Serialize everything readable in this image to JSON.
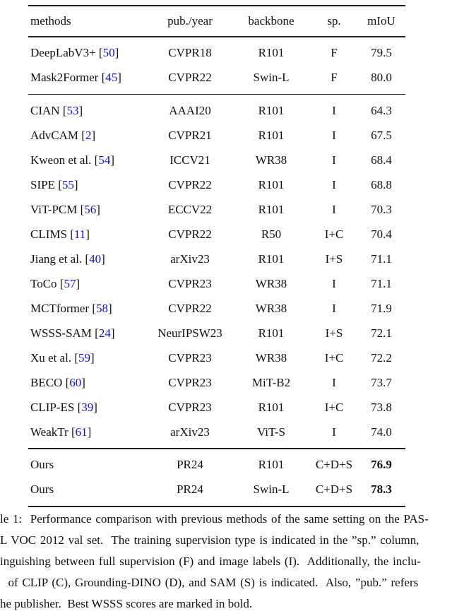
{
  "table": {
    "columns": [
      "methods",
      "pub./year",
      "backbone",
      "sp.",
      "mIoU"
    ],
    "groups": [
      {
        "rows": [
          {
            "method": "DeepLabV3+",
            "cite": "50",
            "pub": "CVPR18",
            "backbone": "R101",
            "sp": "F",
            "miou": "79.5",
            "bold": false
          },
          {
            "method": "Mask2Former",
            "cite": "45",
            "pub": "CVPR22",
            "backbone": "Swin-L",
            "sp": "F",
            "miou": "80.0",
            "bold": false
          }
        ]
      },
      {
        "rows": [
          {
            "method": "CIAN",
            "cite": "53",
            "pub": "AAAI20",
            "backbone": "R101",
            "sp": "I",
            "miou": "64.3",
            "bold": false
          },
          {
            "method": "AdvCAM",
            "cite": "2",
            "pub": "CVPR21",
            "backbone": "R101",
            "sp": "I",
            "miou": "67.5",
            "bold": false
          },
          {
            "method": "Kweon et al.",
            "cite": "54",
            "pub": "ICCV21",
            "backbone": "WR38",
            "sp": "I",
            "miou": "68.4",
            "bold": false
          },
          {
            "method": "SIPE",
            "cite": "55",
            "pub": "CVPR22",
            "backbone": "R101",
            "sp": "I",
            "miou": "68.8",
            "bold": false
          },
          {
            "method": "ViT-PCM",
            "cite": "56",
            "pub": "ECCV22",
            "backbone": "R101",
            "sp": "I",
            "miou": "70.3",
            "bold": false
          },
          {
            "method": "CLIMS",
            "cite": "11",
            "pub": "CVPR22",
            "backbone": "R50",
            "sp": "I+C",
            "miou": "70.4",
            "bold": false
          },
          {
            "method": "Jiang et al.",
            "cite": "40",
            "pub": "arXiv23",
            "backbone": "R101",
            "sp": "I+S",
            "miou": "71.1",
            "bold": false
          },
          {
            "method": "ToCo",
            "cite": "57",
            "pub": "CVPR23",
            "backbone": "WR38",
            "sp": "I",
            "miou": "71.1",
            "bold": false
          },
          {
            "method": "MCTformer",
            "cite": "58",
            "pub": "CVPR22",
            "backbone": "WR38",
            "sp": "I",
            "miou": "71.9",
            "bold": false
          },
          {
            "method": "WSSS-SAM",
            "cite": "24",
            "pub": "NeurIPSW23",
            "backbone": "R101",
            "sp": "I+S",
            "miou": "72.1",
            "bold": false
          },
          {
            "method": "Xu et al.",
            "cite": "59",
            "pub": "CVPR23",
            "backbone": "WR38",
            "sp": "I+C",
            "miou": "72.2",
            "bold": false
          },
          {
            "method": "BECO",
            "cite": "60",
            "pub": "CVPR23",
            "backbone": "MiT-B2",
            "sp": "I",
            "miou": "73.7",
            "bold": false
          },
          {
            "method": "CLIP-ES",
            "cite": "39",
            "pub": "CVPR23",
            "backbone": "R101",
            "sp": "I+C",
            "miou": "73.8",
            "bold": false
          },
          {
            "method": "WeakTr",
            "cite": "61",
            "pub": "arXiv23",
            "backbone": "ViT-S",
            "sp": "I",
            "miou": "74.0",
            "bold": false
          }
        ]
      },
      {
        "rows": [
          {
            "method": "Ours",
            "cite": "",
            "pub": "PR24",
            "backbone": "R101",
            "sp": "C+D+S",
            "miou": "76.9",
            "bold": true
          },
          {
            "method": "Ours",
            "cite": "",
            "pub": "PR24",
            "backbone": "Swin-L",
            "sp": "C+D+S",
            "miou": "78.3",
            "bold": true
          }
        ]
      }
    ]
  },
  "caption": {
    "lines": [
      "le 1:  Performance comparison with previous methods of the same setting on the PAS-",
      "L VOC 2012 val set.  The training supervision type is indicated in the ”sp.” column,",
      "inguishing between full supervision (F) and image labels (I).  Additionally, the inclu-",
      "  of CLIP (C), Grounding-DINO (D), and SAM (S) is indicated.  Also, ”pub.” refers",
      "he publisher.  Best WSSS scores are marked in bold."
    ]
  },
  "colors": {
    "citation_blue": "#0d0df2",
    "rule_color": "#222222",
    "text_color": "#111111"
  }
}
